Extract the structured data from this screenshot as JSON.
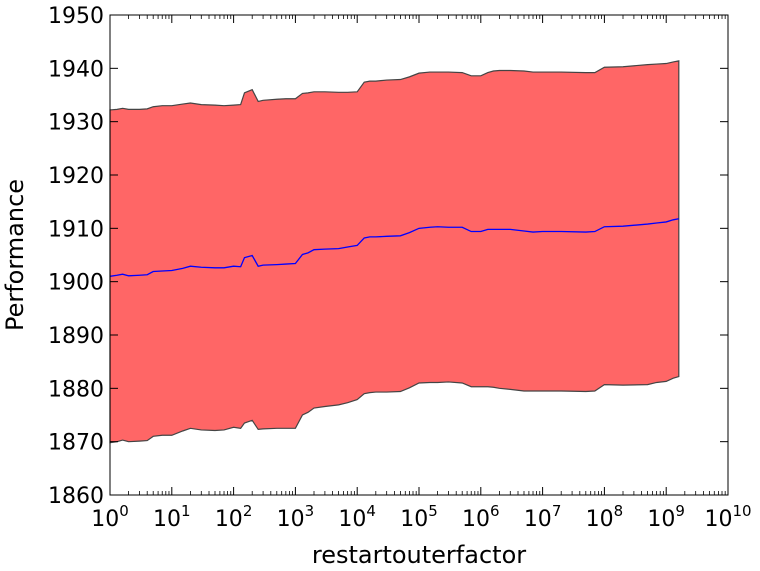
{
  "chart_data": {
    "type": "area",
    "title": "",
    "xlabel": "restartouterfactor",
    "ylabel": "Performance",
    "xscale": "log",
    "xlim": [
      1,
      10000000000
    ],
    "ylim": [
      1860,
      1950
    ],
    "x_ticks": [
      {
        "base": "10",
        "exp": "0"
      },
      {
        "base": "10",
        "exp": "1"
      },
      {
        "base": "10",
        "exp": "2"
      },
      {
        "base": "10",
        "exp": "3"
      },
      {
        "base": "10",
        "exp": "4"
      },
      {
        "base": "10",
        "exp": "5"
      },
      {
        "base": "10",
        "exp": "6"
      },
      {
        "base": "10",
        "exp": "7"
      },
      {
        "base": "10",
        "exp": "8"
      },
      {
        "base": "10",
        "exp": "9"
      },
      {
        "base": "10",
        "exp": "10"
      }
    ],
    "y_ticks": [
      "1860",
      "1870",
      "1880",
      "1890",
      "1900",
      "1910",
      "1920",
      "1930",
      "1940",
      "1950"
    ],
    "grid": false,
    "colors": {
      "band_fill": "#ff6666",
      "band_edge": "#444444",
      "mean_line": "#0000ff"
    },
    "series": [
      {
        "role": "mean",
        "x": [
          1,
          1.3,
          1.6,
          2,
          3,
          4,
          5,
          7,
          10,
          15,
          20,
          30,
          50,
          70,
          100,
          130,
          150,
          200,
          250,
          300,
          500,
          700,
          1000,
          1300,
          1600,
          2000,
          3000,
          5000,
          7000,
          10000,
          13000,
          16000,
          20000,
          30000,
          50000,
          70000,
          100000,
          150000,
          200000,
          300000,
          500000,
          700000,
          1000000,
          1300000,
          1600000,
          2000000,
          3000000,
          5000000,
          7000000,
          10000000,
          20000000,
          50000000,
          70000000,
          100000000,
          200000000,
          500000000,
          700000000,
          1000000000,
          1300000000,
          1600000000
        ],
        "y": [
          1901,
          1901.2,
          1901.4,
          1901.1,
          1901.2,
          1901.3,
          1901.9,
          1902,
          1902.1,
          1902.5,
          1902.9,
          1902.7,
          1902.6,
          1902.6,
          1902.9,
          1902.8,
          1904.5,
          1904.9,
          1902.9,
          1903.1,
          1903.2,
          1903.3,
          1903.4,
          1905.1,
          1905.4,
          1906,
          1906.1,
          1906.2,
          1906.5,
          1906.8,
          1908.2,
          1908.4,
          1908.4,
          1908.5,
          1908.6,
          1909.2,
          1910,
          1910.2,
          1910.3,
          1910.2,
          1910.2,
          1909.4,
          1909.4,
          1909.8,
          1909.8,
          1909.8,
          1909.8,
          1909.5,
          1909.3,
          1909.4,
          1909.4,
          1909.3,
          1909.4,
          1910.3,
          1910.4,
          1910.8,
          1911,
          1911.2,
          1911.6,
          1911.8
        ]
      },
      {
        "role": "upper",
        "x": [
          1,
          1.3,
          1.6,
          2,
          3,
          4,
          5,
          7,
          10,
          15,
          20,
          30,
          50,
          70,
          100,
          130,
          150,
          200,
          250,
          300,
          500,
          700,
          1000,
          1300,
          1600,
          2000,
          3000,
          5000,
          7000,
          10000,
          13000,
          16000,
          20000,
          30000,
          50000,
          70000,
          100000,
          150000,
          200000,
          300000,
          500000,
          700000,
          1000000,
          1300000,
          1600000,
          2000000,
          3000000,
          5000000,
          7000000,
          10000000,
          20000000,
          50000000,
          70000000,
          100000000,
          200000000,
          500000000,
          700000000,
          1000000000,
          1300000000,
          1600000000
        ],
        "y": [
          1932.2,
          1932.3,
          1932.5,
          1932.3,
          1932.3,
          1932.4,
          1932.8,
          1933,
          1933,
          1933.3,
          1933.5,
          1933.2,
          1933.1,
          1933,
          1933.1,
          1933.2,
          1935.4,
          1936,
          1933.8,
          1934,
          1934.2,
          1934.3,
          1934.3,
          1935.3,
          1935.4,
          1935.6,
          1935.6,
          1935.5,
          1935.5,
          1935.6,
          1937.4,
          1937.6,
          1937.6,
          1937.8,
          1937.9,
          1938.4,
          1939.1,
          1939.3,
          1939.3,
          1939.3,
          1939.2,
          1938.6,
          1938.6,
          1939.2,
          1939.5,
          1939.6,
          1939.6,
          1939.5,
          1939.3,
          1939.3,
          1939.3,
          1939.2,
          1939.2,
          1940.2,
          1940.3,
          1940.7,
          1940.8,
          1940.9,
          1941.2,
          1941.4
        ]
      },
      {
        "role": "lower",
        "x": [
          1,
          1.3,
          1.6,
          2,
          3,
          4,
          5,
          7,
          10,
          15,
          20,
          30,
          50,
          70,
          100,
          130,
          150,
          200,
          250,
          300,
          500,
          700,
          1000,
          1300,
          1600,
          2000,
          3000,
          5000,
          7000,
          10000,
          13000,
          16000,
          20000,
          30000,
          50000,
          70000,
          100000,
          150000,
          200000,
          300000,
          500000,
          700000,
          1000000,
          1300000,
          1600000,
          2000000,
          3000000,
          5000000,
          7000000,
          10000000,
          20000000,
          50000000,
          70000000,
          100000000,
          200000000,
          500000000,
          700000000,
          1000000000,
          1300000000,
          1600000000
        ],
        "y": [
          1869.8,
          1870,
          1870.3,
          1870,
          1870.1,
          1870.2,
          1871,
          1871.2,
          1871.2,
          1872,
          1872.5,
          1872.2,
          1872.1,
          1872.2,
          1872.7,
          1872.5,
          1873.5,
          1874,
          1872.3,
          1872.4,
          1872.5,
          1872.5,
          1872.5,
          1875,
          1875.5,
          1876.3,
          1876.6,
          1876.9,
          1877.3,
          1877.9,
          1879,
          1879.2,
          1879.3,
          1879.3,
          1879.4,
          1880.1,
          1881,
          1881.1,
          1881.1,
          1881.2,
          1881,
          1880.3,
          1880.3,
          1880.3,
          1880.2,
          1880,
          1879.8,
          1879.5,
          1879.5,
          1879.5,
          1879.5,
          1879.4,
          1879.5,
          1880.7,
          1880.6,
          1880.7,
          1881.1,
          1881.3,
          1881.9,
          1882.2
        ]
      }
    ]
  }
}
